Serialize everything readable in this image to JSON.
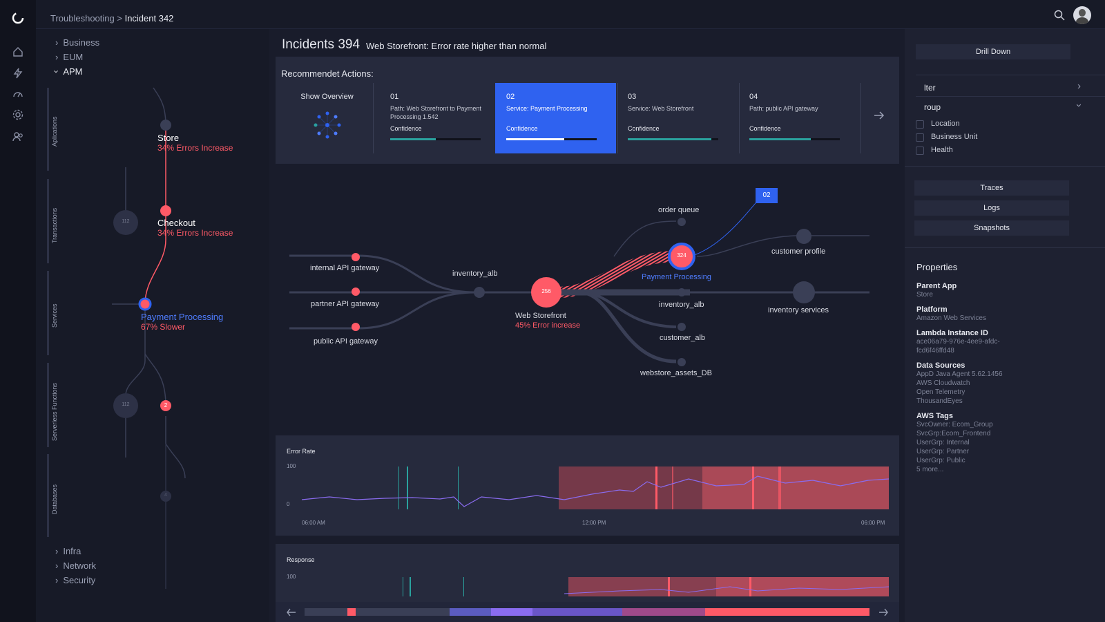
{
  "breadcrumb": {
    "parent": "Troubleshooting",
    "sep": " > ",
    "current": "Incident 342"
  },
  "rail": {
    "icons": [
      "logo-icon",
      "home-icon",
      "bolt-icon",
      "dashboard-icon",
      "gear-icon",
      "users-icon"
    ]
  },
  "tree": {
    "top_items": [
      {
        "label": "Business",
        "open": false
      },
      {
        "label": "EUM",
        "open": false
      },
      {
        "label": "APM",
        "open": true
      }
    ],
    "bottom_items": [
      {
        "label": "Infra"
      },
      {
        "label": "Network"
      },
      {
        "label": "Security"
      }
    ],
    "sections": [
      "Aplications",
      "Transactions",
      "Services",
      "Serverless Functions",
      "Databases"
    ],
    "nodes": {
      "store": {
        "title": "Store",
        "status": "34% Errors Increase"
      },
      "checkout": {
        "title": "Checkout",
        "status": "34% Errors Increase"
      },
      "payment": {
        "title": "Payment Processing",
        "status": "67% Slower"
      },
      "badge_112a": "112",
      "badge_112b": "112",
      "badge_2": "2",
      "badge_4": "4"
    }
  },
  "incident": {
    "title": "Incidents 394",
    "subtitle": "Web Storefront: Error rate higher than normal"
  },
  "recommended": {
    "heading": "Recommendet Actions:",
    "overview_label": "Show Overview",
    "cards": [
      {
        "num": "01",
        "desc": "Path: Web Storefront to Payment Processing 1.542",
        "confidence_label": "Confidence",
        "confidence": 0.5,
        "selected": false
      },
      {
        "num": "02",
        "desc": "Service: Payment Processing",
        "confidence_label": "Confidence",
        "confidence": 0.64,
        "selected": true
      },
      {
        "num": "03",
        "desc": "Service: Web Storefront",
        "confidence_label": "Confidence",
        "confidence": 0.92,
        "selected": false
      },
      {
        "num": "04",
        "desc": "Path: public API gateway",
        "confidence_label": "Confidence",
        "confidence": 0.68,
        "selected": false
      }
    ]
  },
  "topology": {
    "gateways": [
      "internal API gateway",
      "partner API gateway",
      "public API gateway"
    ],
    "inventory_alb": "inventory_alb",
    "web_storefront": {
      "label": "Web Storefront",
      "status": "45% Error increase",
      "count": "256"
    },
    "payment": {
      "label": "Payment Processing",
      "count": "324"
    },
    "callout": "02",
    "downstream": [
      "order queue",
      "inventory_alb",
      "customer_alb",
      "webstore_assets_DB"
    ],
    "far": [
      "customer profile",
      "inventory services"
    ]
  },
  "error_chart": {
    "title": "Error Rate",
    "y_max": "100",
    "y_min": "0",
    "x_ticks": [
      "06:00 AM",
      "12:00 PM",
      "06:00 PM"
    ]
  },
  "response_chart": {
    "title": "Response",
    "y_max": "100"
  },
  "right": {
    "drill_down": "Drill Down",
    "filter_label": "lter",
    "group_label": "roup",
    "checkboxes": [
      "Location",
      "Business Unit",
      "Health"
    ],
    "buttons": [
      "Traces",
      "Logs",
      "Snapshots"
    ],
    "properties_title": "Properties",
    "properties": [
      {
        "name": "Parent App",
        "values": [
          "Store"
        ]
      },
      {
        "name": "Platform",
        "values": [
          "Amazon Web Services"
        ]
      },
      {
        "name": "Lambda Instance ID",
        "values": [
          "ace06a79-976e-4ee9-afdc-",
          "fcd6f46ffd48"
        ]
      },
      {
        "name": "Data Sources",
        "values": [
          "AppD Java Agent 5.62.1456",
          "AWS Cloudwatch",
          "Open Telemetry",
          "ThousandEyes"
        ]
      },
      {
        "name": "AWS Tags",
        "values": [
          "SvcOwner: Ecom_Group",
          "SvcGrp:Ecom_Frontend",
          "UserGrp: Internal",
          "UserGrp: Partner",
          "UserGrp: Public",
          "5 more..."
        ]
      }
    ]
  },
  "colors": {
    "accent": "#2f62f0",
    "error": "#ff5a67",
    "teal": "#2aa29e",
    "bg": "#191c2b"
  }
}
